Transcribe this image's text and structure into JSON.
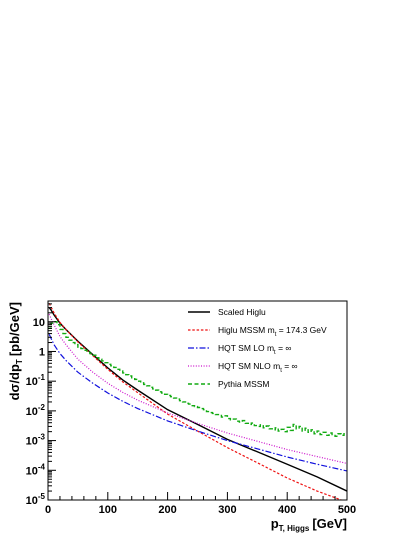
{
  "chart_data": {
    "type": "line",
    "xlabel": {
      "main": "p",
      "sub": "T, Higgs",
      "unit": "[GeV]"
    },
    "ylabel": {
      "main": "dσ/dp",
      "sub": "T",
      "unit": "[pb/GeV]"
    },
    "xlim": [
      0,
      500
    ],
    "ylim": [
      1e-05,
      50
    ],
    "yscale": "log",
    "grid": false,
    "legend_position": "top-right",
    "x_ticks": [
      "0",
      "100",
      "200",
      "300",
      "400",
      "500"
    ],
    "x_tick_values": [
      0,
      100,
      200,
      300,
      400,
      500
    ],
    "y_ticks": [
      {
        "value": 10,
        "base": "10",
        "exp": ""
      },
      {
        "value": 1,
        "base": "1",
        "exp": ""
      },
      {
        "value": 0.1,
        "base": "10",
        "exp": "-1"
      },
      {
        "value": 0.01,
        "base": "10",
        "exp": "-2"
      },
      {
        "value": 0.001,
        "base": "10",
        "exp": "-3"
      },
      {
        "value": 0.0001,
        "base": "10",
        "exp": "-4"
      },
      {
        "value": 1e-05,
        "base": "10",
        "exp": "-5"
      }
    ],
    "series": [
      {
        "name": "Scaled Higlu",
        "label_main": "Scaled Higlu",
        "label_sub": "",
        "label_tail": "",
        "color": "#000000",
        "dash": "",
        "width": 1.4,
        "step": false,
        "x": [
          2,
          5,
          10,
          20,
          30,
          50,
          75,
          100,
          125,
          150,
          200,
          250,
          300,
          350,
          400,
          450,
          500
        ],
        "y": [
          30,
          25,
          17,
          9,
          5.5,
          2.2,
          0.78,
          0.28,
          0.11,
          0.05,
          0.011,
          0.0035,
          0.0011,
          0.00042,
          0.00016,
          6e-05,
          2e-05
        ]
      },
      {
        "name": "Higlu MSSM",
        "label_main": "Higlu MSSM m",
        "label_sub": "t",
        "label_tail": " = 174.3 GeV",
        "color": "#ee1111",
        "dash": "2.5,1.8",
        "width": 1.2,
        "step": false,
        "x": [
          2,
          5,
          10,
          20,
          30,
          50,
          75,
          100,
          125,
          150,
          200,
          250,
          300,
          350,
          400,
          450,
          500
        ],
        "y": [
          42,
          32,
          20,
          9.5,
          5.5,
          2.1,
          0.72,
          0.25,
          0.095,
          0.041,
          0.0078,
          0.0021,
          0.00058,
          0.00018,
          5.5e-05,
          2e-05,
          8.5e-06
        ]
      },
      {
        "name": "HQT SM LO",
        "label_main": "HQT SM LO m",
        "label_sub": "t",
        "label_tail": " = ∞",
        "color": "#1111dd",
        "dash": "6,2,1.5,2",
        "width": 1.2,
        "step": false,
        "x": [
          2,
          5,
          10,
          20,
          30,
          50,
          75,
          100,
          125,
          150,
          200,
          250,
          300,
          350,
          400,
          450,
          500
        ],
        "y": [
          3.8,
          2.8,
          1.7,
          0.85,
          0.5,
          0.2,
          0.085,
          0.04,
          0.021,
          0.012,
          0.0046,
          0.0021,
          0.001,
          0.00053,
          0.00028,
          0.00016,
          9.5e-05
        ]
      },
      {
        "name": "HQT SM NLO",
        "label_main": "HQT SM NLO m",
        "label_sub": "t",
        "label_tail": " = ∞",
        "color": "#cc11cc",
        "dash": "1,1.6",
        "width": 1.2,
        "step": false,
        "x": [
          2,
          5,
          10,
          20,
          30,
          50,
          75,
          100,
          125,
          150,
          200,
          250,
          300,
          350,
          400,
          450,
          500
        ],
        "y": [
          18,
          13,
          8,
          3.2,
          1.7,
          0.55,
          0.2,
          0.085,
          0.042,
          0.023,
          0.0085,
          0.0038,
          0.0018,
          0.00095,
          0.0005,
          0.00029,
          0.00017
        ]
      },
      {
        "name": "Pythia MSSM",
        "label_main": "Pythia MSSM",
        "label_sub": "",
        "label_tail": "",
        "color": "#11aa11",
        "dash": "4,2.5",
        "width": 1.4,
        "step": true,
        "x": [
          0,
          5,
          10,
          15,
          20,
          25,
          30,
          35,
          40,
          45,
          50,
          55,
          60,
          65,
          70,
          75,
          80,
          85,
          90,
          95,
          100,
          105,
          110,
          115,
          120,
          125,
          130,
          135,
          140,
          145,
          150,
          155,
          160,
          165,
          170,
          175,
          180,
          185,
          190,
          195,
          200,
          205,
          210,
          215,
          220,
          225,
          230,
          235,
          240,
          245,
          250,
          255,
          260,
          265,
          270,
          275,
          280,
          285,
          290,
          295,
          300,
          305,
          310,
          315,
          320,
          325,
          330,
          335,
          340,
          345,
          350,
          355,
          360,
          365,
          370,
          375,
          380,
          385,
          390,
          395,
          400,
          405,
          410,
          415,
          420,
          425,
          430,
          435,
          440,
          445,
          450,
          455,
          460,
          465,
          470,
          475,
          480,
          485,
          490,
          495,
          500
        ],
        "y": [
          6,
          9,
          10,
          8,
          5.5,
          4,
          3,
          2.4,
          2,
          1.7,
          1.4,
          1.25,
          1.1,
          0.95,
          0.85,
          0.75,
          0.62,
          0.55,
          0.48,
          0.42,
          0.37,
          0.33,
          0.29,
          0.25,
          0.22,
          0.19,
          0.165,
          0.15,
          0.13,
          0.115,
          0.1,
          0.088,
          0.078,
          0.07,
          0.062,
          0.055,
          0.05,
          0.044,
          0.04,
          0.036,
          0.033,
          0.03,
          0.027,
          0.025,
          0.022,
          0.02,
          0.018,
          0.017,
          0.015,
          0.014,
          0.013,
          0.012,
          0.011,
          0.0095,
          0.0088,
          0.0082,
          0.0075,
          0.007,
          0.0062,
          0.0068,
          0.0055,
          0.005,
          0.0053,
          0.0045,
          0.0042,
          0.0047,
          0.0038,
          0.0035,
          0.0039,
          0.0032,
          0.003,
          0.0034,
          0.0027,
          0.0031,
          0.0025,
          0.0023,
          0.0027,
          0.0021,
          0.0024,
          0.002,
          0.0028,
          0.0022,
          0.0035,
          0.0025,
          0.003,
          0.0021,
          0.0026,
          0.0019,
          0.0023,
          0.0017,
          0.0021,
          0.0016,
          0.0019,
          0.0015,
          0.0018,
          0.0016,
          0.0014,
          0.0017,
          0.0015,
          0.0017,
          0.0017
        ]
      }
    ]
  }
}
